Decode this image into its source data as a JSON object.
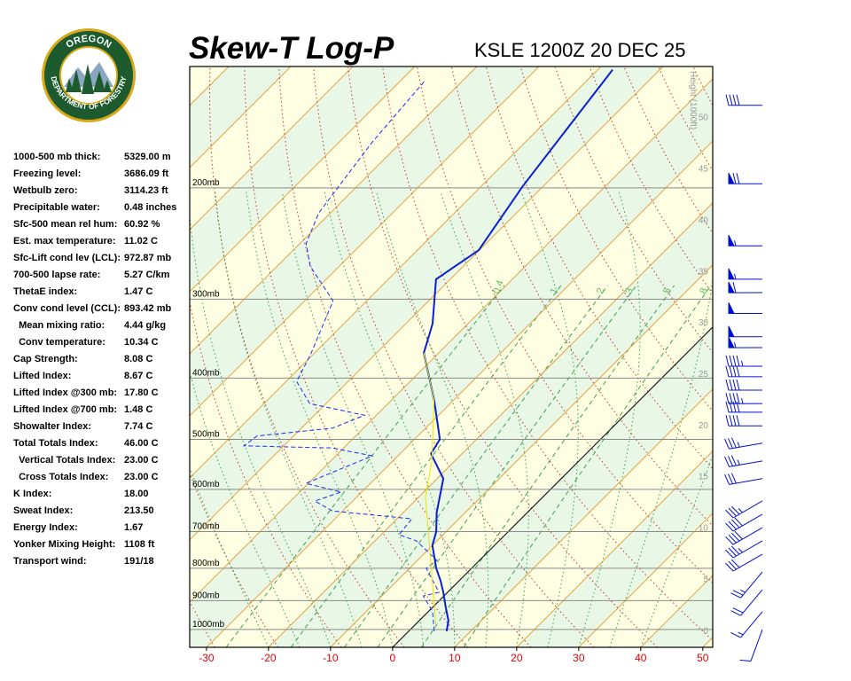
{
  "logo": {
    "top": "OREGON",
    "bottom": "DEPARTMENT OF FORESTRY"
  },
  "indices": [
    {
      "label": "1000-500 mb thick:",
      "value": "5329.00 m"
    },
    {
      "label": "Freezing level:",
      "value": "3686.09 ft"
    },
    {
      "label": "Wetbulb zero:",
      "value": "3114.23 ft"
    },
    {
      "label": "Precipitable water:",
      "value": "0.48 inches"
    },
    {
      "label": "Sfc-500 mean rel hum:",
      "value": "60.92 %"
    },
    {
      "label": "Est. max temperature:",
      "value": "11.02 C"
    },
    {
      "label": "Sfc-Lift cond lev (LCL):",
      "value": "972.87 mb"
    },
    {
      "label": "700-500 lapse rate:",
      "value": "5.27 C/km"
    },
    {
      "label": "ThetaE index:",
      "value": "1.47 C"
    },
    {
      "label": "Conv cond level (CCL):",
      "value": "893.42 mb"
    },
    {
      "label": "  Mean mixing ratio:",
      "value": "4.44 g/kg"
    },
    {
      "label": "  Conv temperature:",
      "value": "10.34 C"
    },
    {
      "label": "Cap Strength:",
      "value": "8.08 C"
    },
    {
      "label": "Lifted Index:",
      "value": "8.67 C"
    },
    {
      "label": "Lifted Index @300 mb:",
      "value": "17.80 C"
    },
    {
      "label": "Lifted Index @700 mb:",
      "value": "1.48 C"
    },
    {
      "label": "Showalter Index:",
      "value": "7.74 C"
    },
    {
      "label": "Total Totals Index:",
      "value": "46.00 C"
    },
    {
      "label": "  Vertical Totals Index:",
      "value": "23.00 C"
    },
    {
      "label": "  Cross Totals Index:",
      "value": "23.00 C"
    },
    {
      "label": "K Index:",
      "value": "18.00"
    },
    {
      "label": "Sweat Index:",
      "value": "213.50"
    },
    {
      "label": "Energy Index:",
      "value": "1.67"
    },
    {
      "label": "Yonker Mixing Height:",
      "value": "1108 ft"
    },
    {
      "label": "Transport wind:",
      "value": "191/18"
    }
  ],
  "chart_data": {
    "type": "skewt",
    "title": "Skew-T Log-P",
    "subtitle": "KSLE 1200Z 20 DEC 25",
    "xlim": [
      -32.7,
      51.6
    ],
    "xticks": [
      -30,
      -20,
      -10,
      0,
      10,
      20,
      30,
      40,
      50
    ],
    "ylim": [
      1067,
      128.5
    ],
    "log_y": true,
    "yticks": [
      {
        "value": 1000,
        "label": "1000mb"
      },
      {
        "value": 900,
        "label": "900mb"
      },
      {
        "value": 800,
        "label": "800mb"
      },
      {
        "value": 700,
        "label": "700mb"
      },
      {
        "value": 600,
        "label": "600mb"
      },
      {
        "value": 500,
        "label": "500mb"
      },
      {
        "value": 400,
        "label": "400mb"
      },
      {
        "value": 300,
        "label": "300mb"
      },
      {
        "value": 200,
        "label": "200mb"
      }
    ],
    "y3_label": "Height (1000ft)",
    "y3lim": [
      -1.7,
      54.9
    ],
    "y3ticks": [
      0,
      5,
      10,
      15,
      20,
      25,
      30,
      35,
      40,
      45,
      50
    ],
    "mixing_ratio_ticks": [
      0.4,
      1,
      2,
      3,
      5,
      8
    ],
    "grid": true,
    "series": [
      {
        "color": "#0a1fd0",
        "style": "solid",
        "pressure": [
          1006,
          968,
          922,
          873,
          837,
          800,
          736,
          700,
          653,
          577,
          527,
          500,
          432,
          365,
          328,
          279,
          251,
          199,
          130
        ],
        "values": [
          6.1,
          4.7,
          2.1,
          -0.7,
          -3,
          -5.7,
          -10,
          -11.6,
          -14.6,
          -19,
          -25,
          -25.9,
          -33.3,
          -42.4,
          -45.7,
          -52.3,
          -50.1,
          -53.3,
          -57.6
        ]
      },
      {
        "color": "#1a2cf0",
        "style": "dashed",
        "pressure": [
          1006,
          937,
          885,
          873,
          800,
          777,
          724,
          708,
          668,
          649,
          626,
          606,
          587,
          531,
          516,
          512,
          494,
          480,
          458,
          439,
          405,
          367,
          302,
          266,
          245,
          219,
          169,
          135
        ],
        "values": [
          4.1,
          0.7,
          -3.3,
          -1.4,
          -7.3,
          -6.9,
          -13.3,
          -17.1,
          -17.6,
          -31.7,
          -36.1,
          -33.3,
          -40.4,
          -34.1,
          -41.9,
          -56.4,
          -55.9,
          -45,
          -41.9,
          -52.6,
          -58.3,
          -60.4,
          -65.4,
          -74.7,
          -79,
          -81.9,
          -84.7,
          -86.1
        ]
      },
      {
        "color": "#e6e600",
        "style": "thin",
        "pressure": [
          984,
          616,
          541,
          432,
          365
        ],
        "values": [
          3.4,
          -19,
          -23.7,
          -33.3,
          -42.4
        ]
      }
    ],
    "wind_color": "#0010d0",
    "winds": [
      {
        "pressure": 148,
        "direction": 270,
        "speed": 40
      },
      {
        "pressure": 197,
        "direction": 270,
        "speed": 70
      },
      {
        "pressure": 247,
        "direction": 270,
        "speed": 55
      },
      {
        "pressure": 279,
        "direction": 270,
        "speed": 55
      },
      {
        "pressure": 293,
        "direction": 270,
        "speed": 60
      },
      {
        "pressure": 316,
        "direction": 270,
        "speed": 50
      },
      {
        "pressure": 344,
        "direction": 270,
        "speed": 50
      },
      {
        "pressure": 358,
        "direction": 270,
        "speed": 55
      },
      {
        "pressure": 383,
        "direction": 270,
        "speed": 45
      },
      {
        "pressure": 398,
        "direction": 270,
        "speed": 40
      },
      {
        "pressure": 418,
        "direction": 270,
        "speed": 40
      },
      {
        "pressure": 439,
        "direction": 270,
        "speed": 45
      },
      {
        "pressure": 453,
        "direction": 270,
        "speed": 40
      },
      {
        "pressure": 476,
        "direction": 270,
        "speed": 40
      },
      {
        "pressure": 507,
        "direction": 260,
        "speed": 35
      },
      {
        "pressure": 541,
        "direction": 260,
        "speed": 35
      },
      {
        "pressure": 577,
        "direction": 260,
        "speed": 30
      },
      {
        "pressure": 626,
        "direction": 240,
        "speed": 35
      },
      {
        "pressure": 657,
        "direction": 240,
        "speed": 40
      },
      {
        "pressure": 690,
        "direction": 240,
        "speed": 40
      },
      {
        "pressure": 724,
        "direction": 240,
        "speed": 35
      },
      {
        "pressure": 760,
        "direction": 240,
        "speed": 30
      },
      {
        "pressure": 811,
        "direction": 220,
        "speed": 25
      },
      {
        "pressure": 865,
        "direction": 220,
        "speed": 20
      },
      {
        "pressure": 937,
        "direction": 220,
        "speed": 15
      },
      {
        "pressure": 1000,
        "direction": 200,
        "speed": 10
      }
    ]
  }
}
